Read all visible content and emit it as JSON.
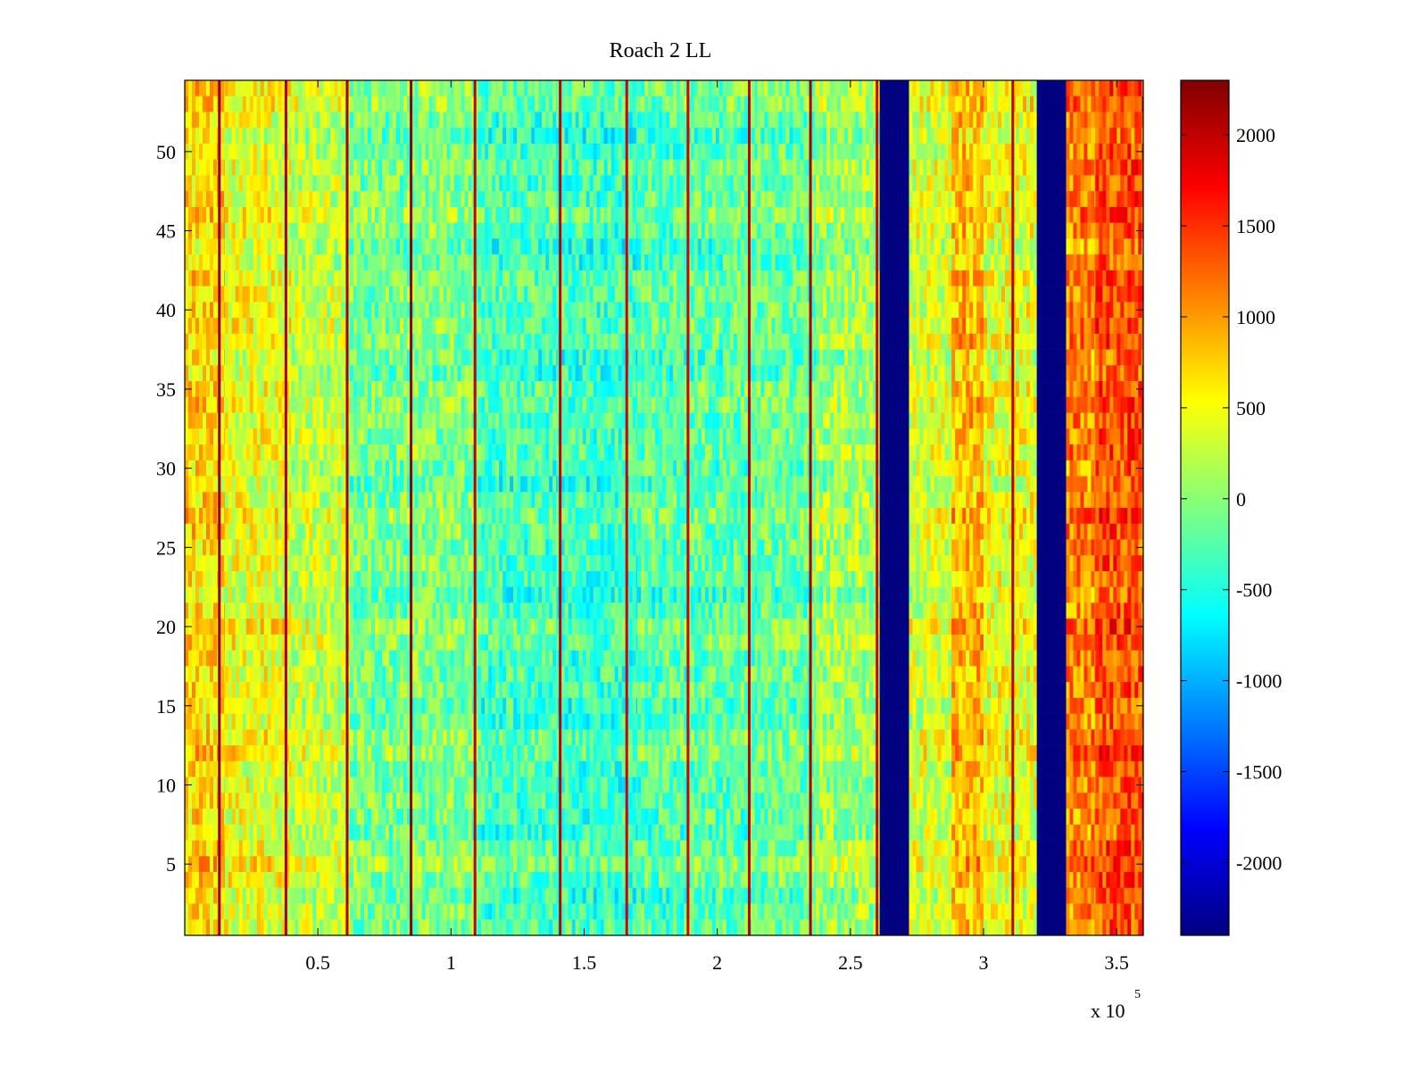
{
  "chart_data": {
    "type": "heatmap",
    "title": "Roach 2 LL",
    "xlabel": "",
    "ylabel": "",
    "x_range": [
      0,
      360000
    ],
    "y_range": [
      0.5,
      54.5
    ],
    "x_ticks": [
      {
        "value": 50000,
        "label": "0.5"
      },
      {
        "value": 100000,
        "label": "1"
      },
      {
        "value": 150000,
        "label": "1.5"
      },
      {
        "value": 200000,
        "label": "2"
      },
      {
        "value": 250000,
        "label": "2.5"
      },
      {
        "value": 300000,
        "label": "3"
      },
      {
        "value": 350000,
        "label": "3.5"
      }
    ],
    "x_exponent": {
      "base": "x 10",
      "power": "5"
    },
    "y_ticks": [
      {
        "value": 5,
        "label": "5"
      },
      {
        "value": 10,
        "label": "10"
      },
      {
        "value": 15,
        "label": "15"
      },
      {
        "value": 20,
        "label": "20"
      },
      {
        "value": 25,
        "label": "25"
      },
      {
        "value": 30,
        "label": "30"
      },
      {
        "value": 35,
        "label": "35"
      },
      {
        "value": 40,
        "label": "40"
      },
      {
        "value": 45,
        "label": "45"
      },
      {
        "value": 50,
        "label": "50"
      }
    ],
    "rows": 54,
    "colormap": "jet",
    "colorbar": {
      "range": [
        -2400,
        2300
      ],
      "ticks": [
        {
          "value": 2000,
          "label": "2000"
        },
        {
          "value": 1500,
          "label": "1500"
        },
        {
          "value": 1000,
          "label": "1000"
        },
        {
          "value": 500,
          "label": "500"
        },
        {
          "value": 0,
          "label": "0"
        },
        {
          "value": -500,
          "label": "-500"
        },
        {
          "value": -1000,
          "label": "-1000"
        },
        {
          "value": -1500,
          "label": "-1500"
        },
        {
          "value": -2000,
          "label": "-2000"
        }
      ]
    },
    "column_profile": [
      {
        "x_from": 0,
        "x_to": 15000,
        "value": 700
      },
      {
        "x_from": 15000,
        "x_to": 40000,
        "value": 450
      },
      {
        "x_from": 40000,
        "x_to": 62000,
        "value": 250
      },
      {
        "x_from": 62000,
        "x_to": 85000,
        "value": -100
      },
      {
        "x_from": 85000,
        "x_to": 110000,
        "value": -50
      },
      {
        "x_from": 110000,
        "x_to": 140000,
        "value": -300
      },
      {
        "x_from": 140000,
        "x_to": 170000,
        "value": -350
      },
      {
        "x_from": 170000,
        "x_to": 190000,
        "value": -250
      },
      {
        "x_from": 190000,
        "x_to": 215000,
        "value": -200
      },
      {
        "x_from": 215000,
        "x_to": 237000,
        "value": -150
      },
      {
        "x_from": 237000,
        "x_to": 261000,
        "value": 100
      },
      {
        "x_from": 261000,
        "x_to": 272000,
        "value": -2400
      },
      {
        "x_from": 272000,
        "x_to": 288000,
        "value": 350
      },
      {
        "x_from": 288000,
        "x_to": 300000,
        "value": 850
      },
      {
        "x_from": 300000,
        "x_to": 320000,
        "value": 450
      },
      {
        "x_from": 320000,
        "x_to": 331000,
        "value": -2400
      },
      {
        "x_from": 331000,
        "x_to": 342000,
        "value": 1100
      },
      {
        "x_from": 342000,
        "x_to": 360000,
        "value": 1350
      }
    ],
    "stripe_lines": [
      {
        "x": 13000,
        "value": 2200
      },
      {
        "x": 38000,
        "value": 2100
      },
      {
        "x": 61000,
        "value": 2100
      },
      {
        "x": 85000,
        "value": 2200
      },
      {
        "x": 109000,
        "value": 2000
      },
      {
        "x": 141000,
        "value": 2000
      },
      {
        "x": 166000,
        "value": 1900
      },
      {
        "x": 189000,
        "value": 1900
      },
      {
        "x": 212000,
        "value": 2000
      },
      {
        "x": 235000,
        "value": 2100
      },
      {
        "x": 260000,
        "value": 1900
      },
      {
        "x": 311000,
        "value": 2000
      }
    ]
  }
}
